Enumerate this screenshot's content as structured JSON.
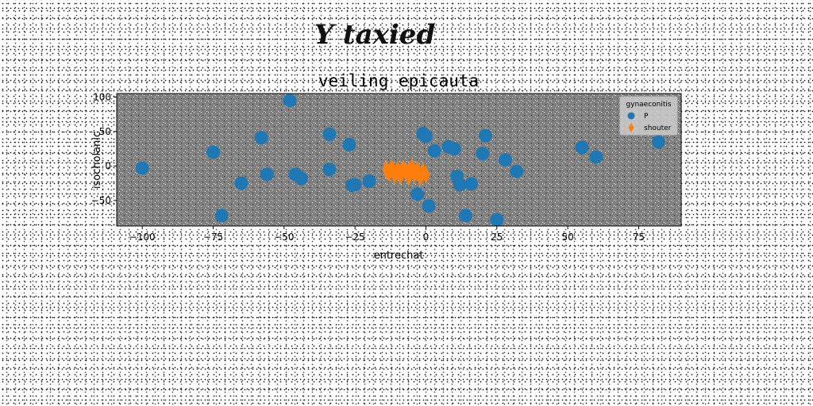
{
  "suptitle": "Y taxied",
  "chart_data": {
    "type": "scatter",
    "title": "veiling epicauta",
    "xlabel": "entrechat",
    "ylabel": "isocholanic",
    "xlim": [
      -109,
      90
    ],
    "ylim": [
      -87,
      105
    ],
    "xticks": [
      -100,
      -75,
      -50,
      -25,
      0,
      25,
      50,
      75
    ],
    "yticks": [
      -50,
      0,
      50,
      100
    ],
    "grid": false,
    "background_color": "#808080",
    "legend": {
      "title": "gynaeconitis",
      "placement": "top-right"
    },
    "series": [
      {
        "name": "P",
        "color": "#1f77b4",
        "marker": "circle",
        "points": [
          [
            -100,
            -3
          ],
          [
            -75,
            20
          ],
          [
            -72,
            -72
          ],
          [
            -65,
            -25
          ],
          [
            -58,
            41
          ],
          [
            -56,
            -12
          ],
          [
            -48,
            95
          ],
          [
            -46,
            -12
          ],
          [
            -44,
            -18
          ],
          [
            -34,
            46
          ],
          [
            -34,
            -5
          ],
          [
            -27,
            31
          ],
          [
            -26,
            -28
          ],
          [
            -25,
            -27
          ],
          [
            -20,
            -22
          ],
          [
            -3,
            -41
          ],
          [
            -1,
            47
          ],
          [
            0,
            43
          ],
          [
            1,
            -58
          ],
          [
            3,
            22
          ],
          [
            8,
            28
          ],
          [
            10,
            25
          ],
          [
            11,
            -15
          ],
          [
            12,
            -27
          ],
          [
            14,
            -72
          ],
          [
            16,
            -26
          ],
          [
            20,
            18
          ],
          [
            21,
            44
          ],
          [
            25,
            -78
          ],
          [
            28,
            9
          ],
          [
            32,
            -8
          ],
          [
            55,
            27
          ],
          [
            60,
            13
          ],
          [
            82,
            35
          ]
        ]
      },
      {
        "name": "shouter",
        "color": "#ff7f0e",
        "marker": "diamond",
        "points": [
          [
            -14,
            -5
          ],
          [
            -13,
            -10
          ],
          [
            -12,
            -3
          ],
          [
            -11,
            -13
          ],
          [
            -10,
            -6
          ],
          [
            -9,
            -14
          ],
          [
            -8,
            -4
          ],
          [
            -7,
            -9
          ],
          [
            -6,
            -15
          ],
          [
            -5,
            -2
          ],
          [
            -4,
            -11
          ],
          [
            -3,
            -6
          ],
          [
            -2,
            -16
          ],
          [
            -1,
            -8
          ],
          [
            0,
            -13
          ],
          [
            -3,
            -9
          ],
          [
            -6,
            -8
          ],
          [
            -9,
            -10
          ]
        ]
      }
    ]
  }
}
